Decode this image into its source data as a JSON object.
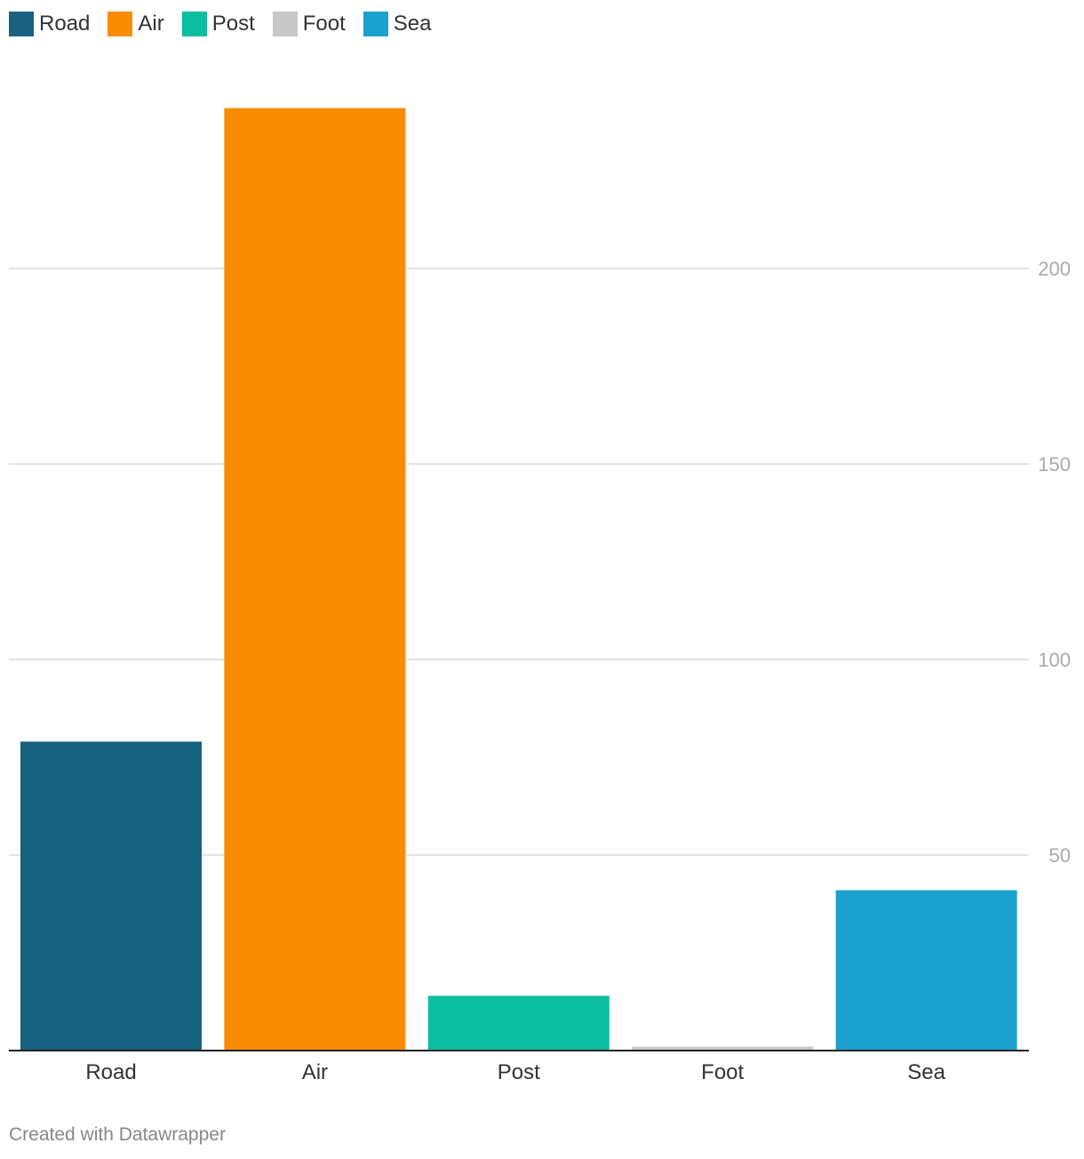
{
  "chart_data": {
    "type": "bar",
    "categories": [
      "Road",
      "Air",
      "Post",
      "Foot",
      "Sea"
    ],
    "values": [
      79,
      241,
      14,
      1,
      41
    ],
    "colors": [
      "#17627e",
      "#f98c00",
      "#0bbda1",
      "#c8c8c8",
      "#1aa1ce"
    ],
    "ylim": [
      0,
      250
    ],
    "yticks": [
      50,
      100,
      150,
      200
    ],
    "grid": true,
    "legend": "top-left",
    "y_axis_side": "right"
  },
  "legend": {
    "items": [
      {
        "label": "Road",
        "color": "#17627e"
      },
      {
        "label": "Air",
        "color": "#f98c00"
      },
      {
        "label": "Post",
        "color": "#0bbda1"
      },
      {
        "label": "Foot",
        "color": "#c8c8c8"
      },
      {
        "label": "Sea",
        "color": "#1aa1ce"
      }
    ]
  },
  "footer": {
    "credit": "Created with Datawrapper"
  }
}
